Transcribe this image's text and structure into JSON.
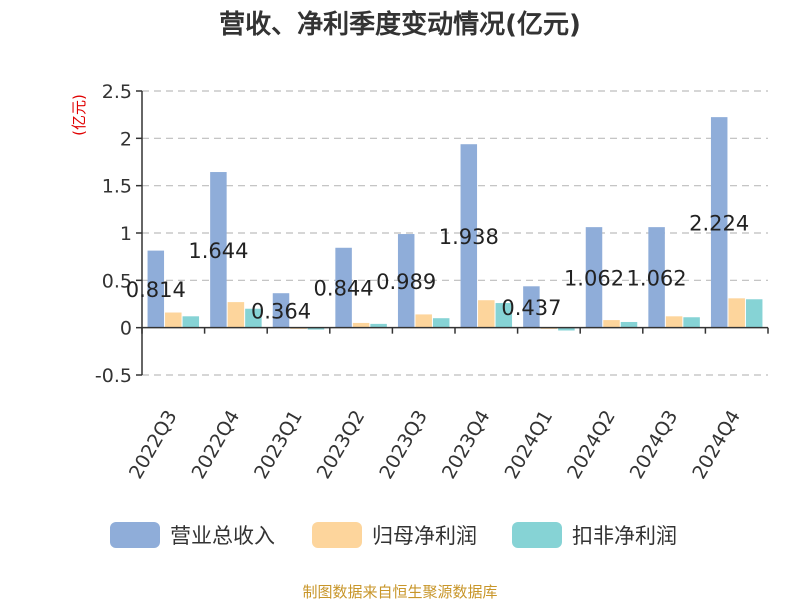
{
  "chart_data": {
    "type": "bar",
    "title": "营收、净利季度变动情况(亿元)",
    "ylabel": "(亿元)",
    "xlabel": "",
    "ylim": [
      -0.5,
      2.5
    ],
    "yticks": [
      -0.5,
      0,
      0.5,
      1,
      1.5,
      2,
      2.5
    ],
    "ytick_labels": [
      "-0.5",
      "0",
      "0.5",
      "1",
      "1.5",
      "2",
      "2.5"
    ],
    "grid": true,
    "legend_position": "bottom",
    "categories": [
      "2022Q3",
      "2022Q4",
      "2023Q1",
      "2023Q2",
      "2023Q3",
      "2023Q4",
      "2024Q1",
      "2024Q2",
      "2024Q3",
      "2024Q4"
    ],
    "series": [
      {
        "name": "营业总收入",
        "color": "#8fadd9",
        "values": [
          0.814,
          1.644,
          0.364,
          0.844,
          0.989,
          1.938,
          0.437,
          1.062,
          1.062,
          2.224
        ]
      },
      {
        "name": "归母净利润",
        "color": "#fdd59c",
        "values": [
          0.16,
          0.27,
          0.0,
          0.05,
          0.14,
          0.29,
          0.0,
          0.08,
          0.12,
          0.31
        ]
      },
      {
        "name": "扣非净利润",
        "color": "#86d3d5",
        "values": [
          0.12,
          0.2,
          -0.02,
          0.04,
          0.1,
          0.26,
          -0.03,
          0.06,
          0.11,
          0.3
        ]
      }
    ],
    "data_labels": [
      "0.814",
      "1.644",
      "0.364",
      "0.844",
      "0.989",
      "1.938",
      "0.437",
      "1.062",
      "1.062",
      "2.224"
    ]
  },
  "source": "制图数据来自恒生聚源数据库"
}
